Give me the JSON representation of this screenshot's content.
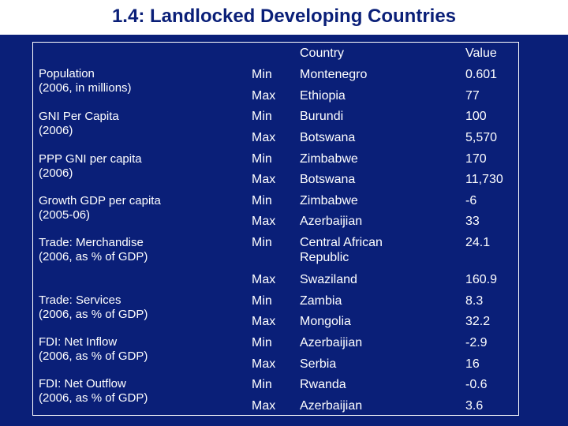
{
  "title": "1.4: Landlocked Developing Countries",
  "headers": {
    "country": "Country",
    "value": "Value"
  },
  "categories": [
    {
      "line1": "Population",
      "line2": "(2006, in millions)"
    },
    {
      "line1": "GNI Per Capita",
      "line2": "(2006)"
    },
    {
      "line1": "PPP GNI per capita",
      "line2": "(2006)"
    },
    {
      "line1": "Growth GDP per capita",
      "line2": "(2005-06)"
    },
    {
      "line1": "Trade: Merchandise",
      "line2": "(2006, as % of GDP)"
    },
    {
      "line1": "Trade: Services",
      "line2": "(2006, as % of GDP)"
    },
    {
      "line1": "FDI: Net Inflow",
      "line2": "(2006, as % of GDP)"
    },
    {
      "line1": "FDI: Net Outflow",
      "line2": "(2006, as % of GDP)"
    }
  ],
  "rows": [
    {
      "minmax": "Min",
      "country": "Montenegro",
      "value": "0.601"
    },
    {
      "minmax": "Max",
      "country": "Ethiopia",
      "value": "77"
    },
    {
      "minmax": "Min",
      "country": "Burundi",
      "value": "100"
    },
    {
      "minmax": "Max",
      "country": "Botswana",
      "value": "5,570"
    },
    {
      "minmax": "Min",
      "country": "Zimbabwe",
      "value": "170"
    },
    {
      "minmax": "Max",
      "country": "Botswana",
      "value": "11,730"
    },
    {
      "minmax": "Min",
      "country": "Zimbabwe",
      "value": "-6"
    },
    {
      "minmax": "Max",
      "country": "Azerbaijian",
      "value": "33"
    },
    {
      "minmax": "Min",
      "country": "Central African",
      "country2": "Republic",
      "value": "24.1"
    },
    {
      "minmax": "Max",
      "country": "Swaziland",
      "value": "160.9"
    },
    {
      "minmax": "Min",
      "country": "Zambia",
      "value": "8.3"
    },
    {
      "minmax": "Max",
      "country": "Mongolia",
      "value": "32.2"
    },
    {
      "minmax": "Min",
      "country": "Azerbaijian",
      "value": "-2.9"
    },
    {
      "minmax": "Max",
      "country": "Serbia",
      "value": "16"
    },
    {
      "minmax": "Min",
      "country": "Rwanda",
      "value": "-0.6"
    },
    {
      "minmax": "Max",
      "country": "Azerbaijian",
      "value": "3.6"
    }
  ]
}
